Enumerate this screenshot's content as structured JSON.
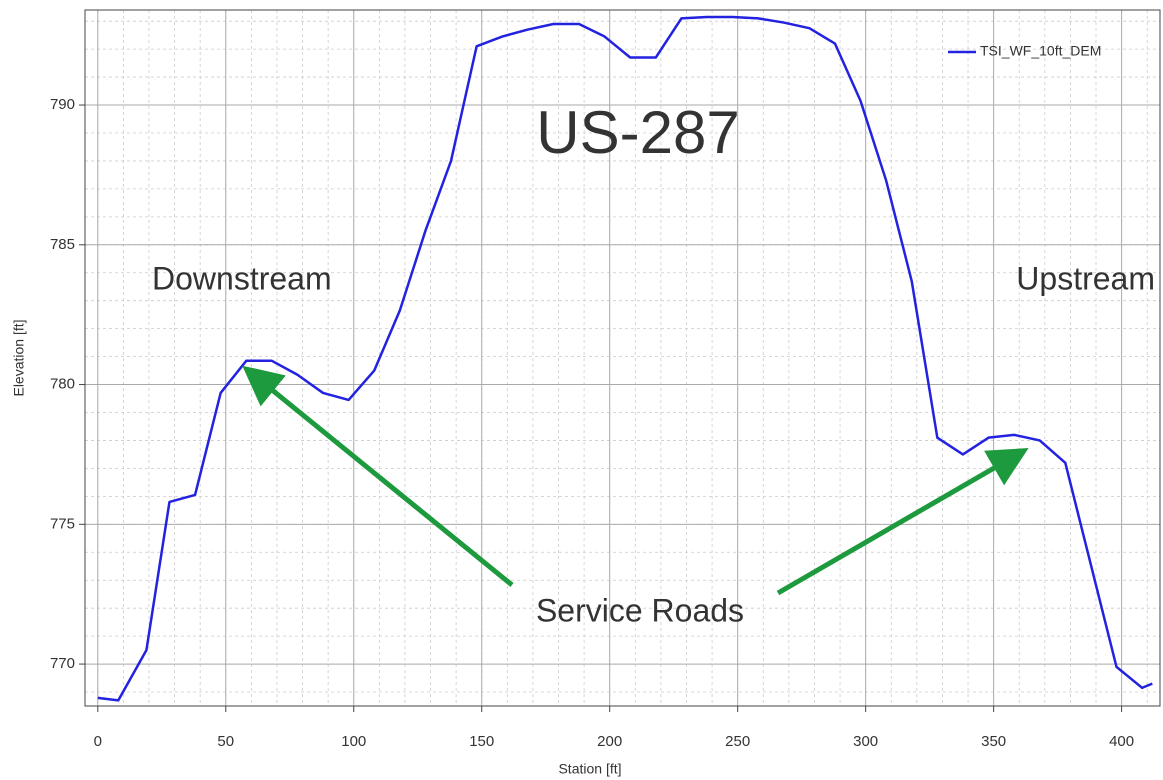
{
  "chart_data": {
    "type": "line",
    "xlabel": "Station [ft]",
    "ylabel": "Elevation [ft]",
    "annotations": [
      "US-287",
      "Downstream",
      "Upstream",
      "Service Roads"
    ],
    "x": [
      0,
      8,
      19,
      28,
      38,
      48,
      58,
      68,
      78,
      88,
      98,
      108,
      118,
      128,
      138,
      148,
      158,
      168,
      178,
      188,
      198,
      208,
      218,
      228,
      238,
      248,
      258,
      268,
      278,
      288,
      298,
      308,
      318,
      328,
      338,
      348,
      358,
      368,
      378,
      388,
      398,
      408,
      412
    ],
    "series": [
      {
        "name": "TSI_WF_10ft_DEM",
        "color": "#2222e0",
        "values": [
          768.79,
          768.7,
          770.5,
          775.8,
          776.05,
          779.7,
          780.85,
          780.85,
          780.35,
          779.7,
          779.45,
          780.5,
          782.65,
          785.5,
          788.0,
          792.1,
          792.45,
          792.7,
          792.9,
          792.9,
          792.45,
          791.7,
          791.7,
          793.1,
          793.15,
          793.15,
          793.1,
          792.95,
          792.75,
          792.2,
          790.15,
          787.3,
          783.7,
          778.1,
          777.5,
          778.1,
          778.2,
          778.0,
          777.2,
          773.55,
          769.9,
          769.15,
          769.3
        ]
      }
    ],
    "xlim": [
      -5,
      415
    ],
    "ylim": [
      768.5,
      793.4
    ],
    "xticks": [
      0,
      50,
      100,
      150,
      200,
      250,
      300,
      350,
      400
    ],
    "yticks": [
      770,
      775,
      780,
      785,
      790
    ],
    "grid": true,
    "minor_grid": true,
    "legend": "upper right"
  }
}
